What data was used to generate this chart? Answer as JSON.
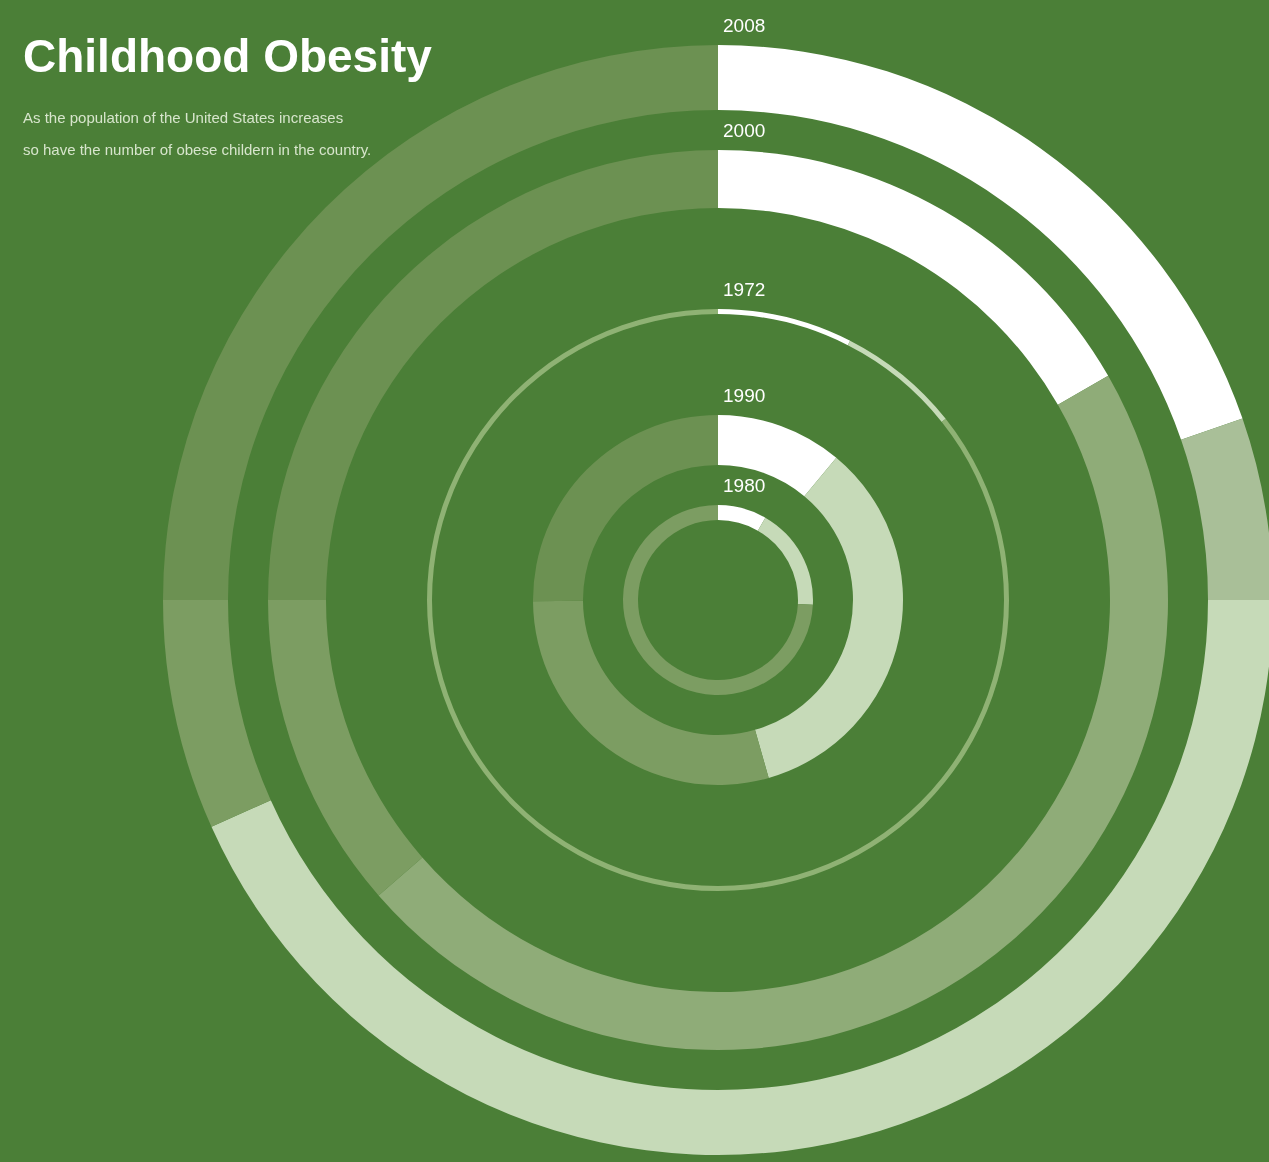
{
  "chart_data": [
    {
      "type": "other",
      "title": "Childhood Obesity",
      "subtitle": "As the population of the United States increases\nso have the number of obese childern in the country."
    },
    {
      "type": "donut",
      "title": "2008",
      "categories": [
        null,
        null,
        null,
        null,
        null
      ],
      "values": [
        19.7,
        5.3,
        43.3,
        6.7,
        25
      ],
      "colors": [
        "#ffffff",
        "#a9bf98",
        "#c6dab8",
        "#7c9d62",
        "#6c9152"
      ]
    },
    {
      "type": "donut",
      "title": "2000",
      "categories": [
        null,
        null,
        null,
        null
      ],
      "values": [
        16.7,
        46.9,
        11.4,
        25
      ],
      "colors": [
        "#ffffff",
        "#8fac78",
        "#7c9d62",
        "#6c9152"
      ]
    },
    {
      "type": "donut",
      "title": "1972",
      "categories": [
        null,
        null,
        null
      ],
      "values": [
        7.5,
        6.8,
        85.7
      ],
      "colors": [
        "#ffffff",
        "#c6dab8",
        "#8fb274"
      ]
    },
    {
      "type": "donut",
      "title": "1990",
      "categories": [
        null,
        null,
        null,
        null
      ],
      "values": [
        11,
        34.4,
        29.2,
        25
      ],
      "colors": [
        "#ffffff",
        "#c6dab8",
        "#7c9d62",
        "#6c9152"
      ]
    },
    {
      "type": "donut",
      "title": "1980",
      "categories": [
        null,
        null,
        null
      ],
      "values": [
        8.3,
        17.5,
        74.2
      ],
      "colors": [
        "#ffffff",
        "#c6dab8",
        "#7c9d62"
      ]
    }
  ]
}
